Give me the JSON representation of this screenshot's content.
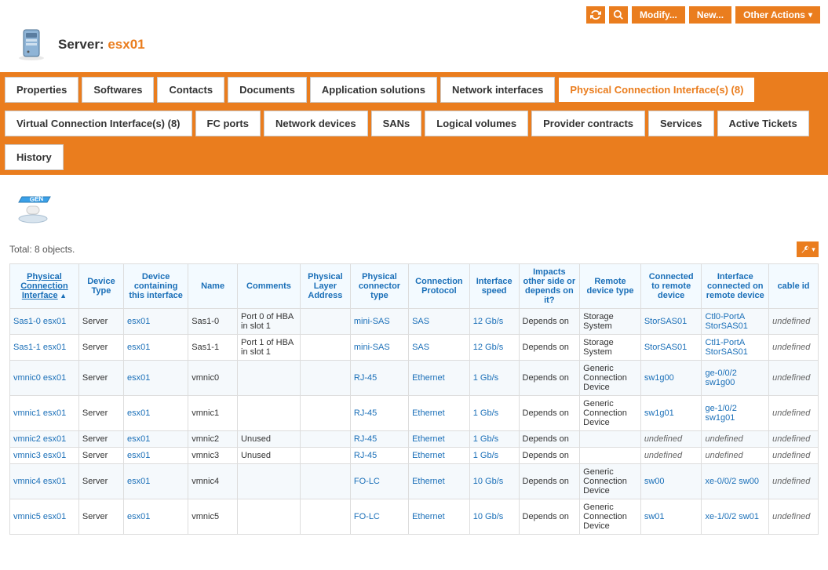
{
  "colors": {
    "accent": "#ea7d1e",
    "link": "#1a6fb8",
    "header_bg": "#f3faff"
  },
  "buttons": {
    "modify": "Modify...",
    "new": "New...",
    "other_actions": "Other Actions"
  },
  "header": {
    "label": "Server:",
    "name": "esx01"
  },
  "tabs": [
    "Properties",
    "Softwares",
    "Contacts",
    "Documents",
    "Application solutions",
    "Network interfaces",
    "Physical Connection Interface(s) (8)",
    "Virtual Connection Interface(s) (8)",
    "FC ports",
    "Network devices",
    "SANs",
    "Logical volumes",
    "Provider contracts",
    "Services",
    "Active Tickets",
    "History"
  ],
  "active_tab_index": 6,
  "total": "Total: 8 objects.",
  "columns": [
    "Physical Connection Interface",
    "Device Type",
    "Device containing this interface",
    "Name",
    "Comments",
    "Physical Layer Address",
    "Physical connector type",
    "Connection Protocol",
    "Interface speed",
    "Impacts other side or depends on it?",
    "Remote device type",
    "Connected to remote device",
    "Interface connected on remote device",
    "cable id"
  ],
  "sort_col_index": 0,
  "rows": [
    {
      "iface": "Sas1-0 esx01",
      "dtype": "Server",
      "dcont": "esx01",
      "name": "Sas1-0",
      "comments": "Port 0 of HBA in slot 1",
      "pla": "",
      "ctype": "mini-SAS",
      "proto": "SAS",
      "speed": "12 Gb/s",
      "impact": "Depends on",
      "rtype": "Storage System",
      "remote": "StorSAS01",
      "riface": "Ctl0-PortA StorSAS01",
      "cable": "undefined"
    },
    {
      "iface": "Sas1-1 esx01",
      "dtype": "Server",
      "dcont": "esx01",
      "name": "Sas1-1",
      "comments": "Port 1 of HBA in slot 1",
      "pla": "",
      "ctype": "mini-SAS",
      "proto": "SAS",
      "speed": "12 Gb/s",
      "impact": "Depends on",
      "rtype": "Storage System",
      "remote": "StorSAS01",
      "riface": "Ctl1-PortA StorSAS01",
      "cable": "undefined"
    },
    {
      "iface": "vmnic0 esx01",
      "dtype": "Server",
      "dcont": "esx01",
      "name": "vmnic0",
      "comments": "",
      "pla": "",
      "ctype": "RJ-45",
      "proto": "Ethernet",
      "speed": "1 Gb/s",
      "impact": "Depends on",
      "rtype": "Generic Connection Device",
      "remote": "sw1g00",
      "riface": "ge-0/0/2 sw1g00",
      "cable": "undefined"
    },
    {
      "iface": "vmnic1 esx01",
      "dtype": "Server",
      "dcont": "esx01",
      "name": "vmnic1",
      "comments": "",
      "pla": "",
      "ctype": "RJ-45",
      "proto": "Ethernet",
      "speed": "1 Gb/s",
      "impact": "Depends on",
      "rtype": "Generic Connection Device",
      "remote": "sw1g01",
      "riface": "ge-1/0/2 sw1g01",
      "cable": "undefined"
    },
    {
      "iface": "vmnic2 esx01",
      "dtype": "Server",
      "dcont": "esx01",
      "name": "vmnic2",
      "comments": "Unused",
      "pla": "",
      "ctype": "RJ-45",
      "proto": "Ethernet",
      "speed": "1 Gb/s",
      "impact": "Depends on",
      "rtype": "",
      "remote": "undefined",
      "riface": "undefined",
      "cable": "undefined",
      "remote_italic": true,
      "riface_italic": true
    },
    {
      "iface": "vmnic3 esx01",
      "dtype": "Server",
      "dcont": "esx01",
      "name": "vmnic3",
      "comments": "Unused",
      "pla": "",
      "ctype": "RJ-45",
      "proto": "Ethernet",
      "speed": "1 Gb/s",
      "impact": "Depends on",
      "rtype": "",
      "remote": "undefined",
      "riface": "undefined",
      "cable": "undefined",
      "remote_italic": true,
      "riface_italic": true
    },
    {
      "iface": "vmnic4 esx01",
      "dtype": "Server",
      "dcont": "esx01",
      "name": "vmnic4",
      "comments": "",
      "pla": "",
      "ctype": "FO-LC",
      "proto": "Ethernet",
      "speed": "10 Gb/s",
      "impact": "Depends on",
      "rtype": "Generic Connection Device",
      "remote": "sw00",
      "riface": "xe-0/0/2 sw00",
      "cable": "undefined"
    },
    {
      "iface": "vmnic5 esx01",
      "dtype": "Server",
      "dcont": "esx01",
      "name": "vmnic5",
      "comments": "",
      "pla": "",
      "ctype": "FO-LC",
      "proto": "Ethernet",
      "speed": "10 Gb/s",
      "impact": "Depends on",
      "rtype": "Generic Connection Device",
      "remote": "sw01",
      "riface": "xe-1/0/2 sw01",
      "cable": "undefined"
    }
  ],
  "col_widths": [
    "77",
    "50",
    "72",
    "55",
    "70",
    "56",
    "65",
    "68",
    "55",
    "68",
    "68",
    "68",
    "75",
    "55"
  ],
  "link_cols": [
    0,
    2,
    6,
    7,
    8,
    11,
    12
  ]
}
